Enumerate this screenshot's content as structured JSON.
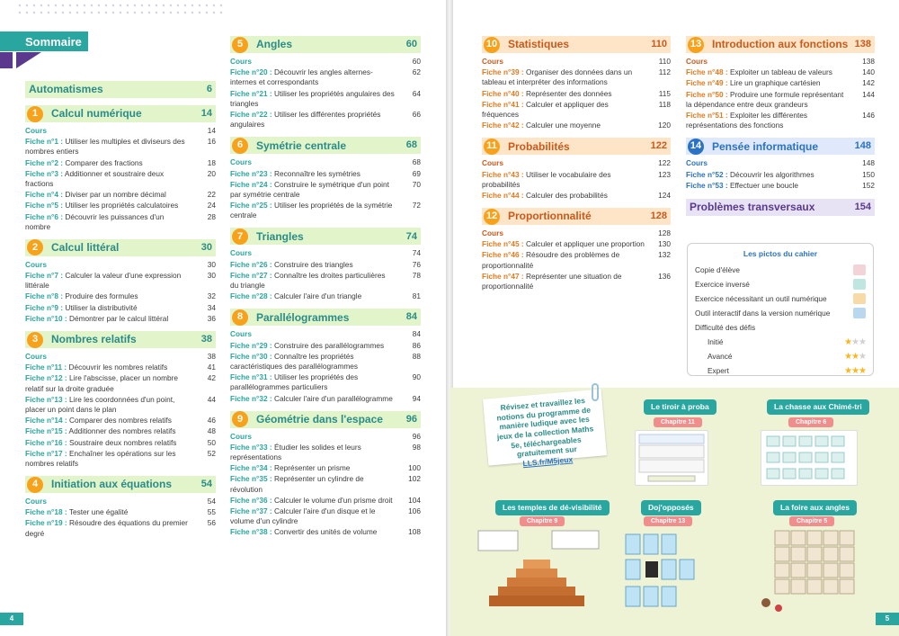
{
  "header": {
    "sommaire": "Sommaire"
  },
  "automatismes": {
    "label": "Automatismes",
    "page": "6"
  },
  "left_col": [
    {
      "num": "1",
      "title": "Calcul numérique",
      "page": "14",
      "cours": {
        "label": "Cours",
        "page": "14"
      },
      "fiches": [
        {
          "label": "Fiche n°1 :",
          "text": "Utiliser les multiples et diviseurs des nombres entiers",
          "page": "16"
        },
        {
          "label": "Fiche n°2 :",
          "text": "Comparer des fractions",
          "page": "18"
        },
        {
          "label": "Fiche n°3 :",
          "text": "Additionner et soustraire deux fractions",
          "page": "20"
        },
        {
          "label": "Fiche n°4 :",
          "text": "Diviser par un nombre décimal",
          "page": "22"
        },
        {
          "label": "Fiche n°5 :",
          "text": "Utiliser les propriétés calculatoires",
          "page": "24"
        },
        {
          "label": "Fiche n°6 :",
          "text": "Découvrir les puissances d'un nombre",
          "page": "28"
        }
      ]
    },
    {
      "num": "2",
      "title": "Calcul littéral",
      "page": "30",
      "cours": {
        "label": "Cours",
        "page": "30"
      },
      "fiches": [
        {
          "label": "Fiche n°7 :",
          "text": "Calculer la valeur d'une expression littérale",
          "page": "30"
        },
        {
          "label": "Fiche n°8 :",
          "text": "Produire des formules",
          "page": "32"
        },
        {
          "label": "Fiche n°9 :",
          "text": "Utiliser la distributivité",
          "page": "34"
        },
        {
          "label": "Fiche n°10 :",
          "text": "Démontrer par le calcul littéral",
          "page": "36"
        }
      ]
    },
    {
      "num": "3",
      "title": "Nombres relatifs",
      "page": "38",
      "cours": {
        "label": "Cours",
        "page": "38"
      },
      "fiches": [
        {
          "label": "Fiche n°11 :",
          "text": "Découvrir les nombres relatifs",
          "page": "41"
        },
        {
          "label": "Fiche n°12 :",
          "text": "Lire l'abscisse, placer un nombre relatif sur la droite graduée",
          "page": "42"
        },
        {
          "label": "Fiche n°13 :",
          "text": "Lire les coordonnées d'un point, placer un point dans le plan",
          "page": "44"
        },
        {
          "label": "Fiche n°14 :",
          "text": "Comparer des nombres relatifs",
          "page": "46"
        },
        {
          "label": "Fiche n°15 :",
          "text": "Additionner des nombres relatifs",
          "page": "48"
        },
        {
          "label": "Fiche n°16 :",
          "text": "Soustraire deux nombres relatifs",
          "page": "50"
        },
        {
          "label": "Fiche n°17 :",
          "text": "Enchaîner les opérations sur les nombres relatifs",
          "page": "52"
        }
      ]
    },
    {
      "num": "4",
      "title": "Initiation aux équations",
      "page": "54",
      "cours": {
        "label": "Cours",
        "page": "54"
      },
      "fiches": [
        {
          "label": "Fiche n°18 :",
          "text": "Tester une égalité",
          "page": "55"
        },
        {
          "label": "Fiche n°19 :",
          "text": "Résoudre des équations du premier degré",
          "page": "56"
        }
      ]
    }
  ],
  "mid_col": [
    {
      "num": "5",
      "title": "Angles",
      "page": "60",
      "cours": {
        "label": "Cours",
        "page": "60"
      },
      "fiches": [
        {
          "label": "Fiche n°20 :",
          "text": "Découvrir les angles alternes-internes et correspondants",
          "page": "62"
        },
        {
          "label": "Fiche n°21 :",
          "text": "Utiliser les propriétés angulaires des triangles",
          "page": "64"
        },
        {
          "label": "Fiche n°22 :",
          "text": "Utiliser les différentes propriétés angulaires",
          "page": "66"
        }
      ]
    },
    {
      "num": "6",
      "title": "Symétrie centrale",
      "page": "68",
      "cours": {
        "label": "Cours",
        "page": "68"
      },
      "fiches": [
        {
          "label": "Fiche n°23 :",
          "text": "Reconnaître les symétries",
          "page": "69"
        },
        {
          "label": "Fiche n°24 :",
          "text": "Construire le symétrique d'un point par symétrie centrale",
          "page": "70"
        },
        {
          "label": "Fiche n°25 :",
          "text": "Utiliser les propriétés de la symétrie centrale",
          "page": "72"
        }
      ]
    },
    {
      "num": "7",
      "title": "Triangles",
      "page": "74",
      "cours": {
        "label": "Cours",
        "page": "74"
      },
      "fiches": [
        {
          "label": "Fiche n°26 :",
          "text": "Construire des triangles",
          "page": "76"
        },
        {
          "label": "Fiche n°27 :",
          "text": "Connaître les droites particulières du triangle",
          "page": "78"
        },
        {
          "label": "Fiche n°28 :",
          "text": "Calculer l'aire d'un triangle",
          "page": "81"
        }
      ]
    },
    {
      "num": "8",
      "title": "Parallélogrammes",
      "page": "84",
      "cours": {
        "label": "Cours",
        "page": "84"
      },
      "fiches": [
        {
          "label": "Fiche n°29 :",
          "text": "Construire des parallélogrammes",
          "page": "86"
        },
        {
          "label": "Fiche n°30 :",
          "text": "Connaître les propriétés caractéristiques des parallélogrammes",
          "page": "88"
        },
        {
          "label": "Fiche n°31 :",
          "text": "Utiliser les propriétés des parallélogrammes particuliers",
          "page": "90"
        },
        {
          "label": "Fiche n°32 :",
          "text": "Calculer l'aire d'un parallélogramme",
          "page": "94"
        }
      ]
    },
    {
      "num": "9",
      "title": "Géométrie dans l'espace",
      "page": "96",
      "cours": {
        "label": "Cours",
        "page": "96"
      },
      "fiches": [
        {
          "label": "Fiche n°33 :",
          "text": "Étudier les solides et leurs représentations",
          "page": "98"
        },
        {
          "label": "Fiche n°34 :",
          "text": "Représenter un prisme",
          "page": "100"
        },
        {
          "label": "Fiche n°35 :",
          "text": "Représenter un cylindre de révolution",
          "page": "102"
        },
        {
          "label": "Fiche n°36 :",
          "text": "Calculer le volume d'un prisme droit",
          "page": "104"
        },
        {
          "label": "Fiche n°37 :",
          "text": "Calculer l'aire d'un disque et le volume d'un cylindre",
          "page": "106"
        },
        {
          "label": "Fiche n°38 :",
          "text": "Convertir des unités de volume",
          "page": "108"
        }
      ]
    }
  ],
  "right_col1": [
    {
      "num": "10",
      "title": "Statistiques",
      "page": "110",
      "cours": {
        "label": "Cours",
        "page": "110"
      },
      "fiches": [
        {
          "label": "Fiche n°39 :",
          "text": "Organiser des données dans un tableau et interpréter des informations",
          "page": "112"
        },
        {
          "label": "Fiche n°40 :",
          "text": "Représenter des données",
          "page": "115"
        },
        {
          "label": "Fiche n°41 :",
          "text": "Calculer et appliquer des fréquences",
          "page": "118"
        },
        {
          "label": "Fiche n°42 :",
          "text": "Calculer une moyenne",
          "page": "120"
        }
      ]
    },
    {
      "num": "11",
      "title": "Probabilités",
      "page": "122",
      "cours": {
        "label": "Cours",
        "page": "122"
      },
      "fiches": [
        {
          "label": "Fiche n°43 :",
          "text": "Utiliser le vocabulaire des probabilités",
          "page": "123"
        },
        {
          "label": "Fiche n°44 :",
          "text": "Calculer des probabilités",
          "page": "124"
        }
      ]
    },
    {
      "num": "12",
      "title": "Proportionnalité",
      "page": "128",
      "cours": {
        "label": "Cours",
        "page": "128"
      },
      "fiches": [
        {
          "label": "Fiche n°45 :",
          "text": "Calculer et appliquer une proportion",
          "page": "130"
        },
        {
          "label": "Fiche n°46 :",
          "text": "Résoudre des problèmes de proportionnalité",
          "page": "132"
        },
        {
          "label": "Fiche n°47 :",
          "text": "Représenter une situation de proportionnalité",
          "page": "136"
        }
      ]
    }
  ],
  "right_col2": [
    {
      "num": "13",
      "title": "Introduction aux fonctions",
      "page": "138",
      "cours": {
        "label": "Cours",
        "page": "138"
      },
      "fiches": [
        {
          "label": "Fiche n°48 :",
          "text": "Exploiter un tableau de valeurs",
          "page": "140"
        },
        {
          "label": "Fiche n°49 :",
          "text": "Lire un graphique cartésien",
          "page": "142"
        },
        {
          "label": "Fiche n°50 :",
          "text": "Produire une formule représentant la dépendance entre deux grandeurs",
          "page": "144"
        },
        {
          "label": "Fiche n°51 :",
          "text": "Exploiter les différentes représentations des fonctions",
          "page": "146"
        }
      ]
    },
    {
      "num": "14",
      "title": "Pensée informatique",
      "page": "148",
      "cours": {
        "label": "Cours",
        "page": "148"
      },
      "fiches": [
        {
          "label": "Fiche n°52 :",
          "text": "Découvrir les algorithmes",
          "page": "150"
        },
        {
          "label": "Fiche n°53 :",
          "text": "Effectuer une boucle",
          "page": "152"
        }
      ]
    }
  ],
  "problemes": {
    "label": "Problèmes transversaux",
    "page": "154"
  },
  "legend": {
    "title": "Les pictos du cahier",
    "items": [
      {
        "text": "Copie d'élève",
        "color": "#f4d3d8"
      },
      {
        "text": "Exercice inversé",
        "color": "#bfe6e1"
      },
      {
        "text": "Exercice nécessitant un outil numérique",
        "color": "#f8d9a8"
      },
      {
        "text": "Outil interactif dans la version numérique",
        "color": "#b9d7ef"
      }
    ],
    "difficulty": "Difficulté des défis",
    "levels": [
      {
        "text": "Initié",
        "on": 1
      },
      {
        "text": "Avancé",
        "on": 2
      },
      {
        "text": "Expert",
        "on": 3
      }
    ]
  },
  "promo": {
    "text": "Révisez et travaillez les notions du programme de manière ludique avec les jeux de la collection Maths 5e, téléchargeables gratuitement sur",
    "link": "LLS.fr/M5jeux"
  },
  "games": [
    {
      "title": "Le tiroir à proba",
      "chapter": "Chapitre 11"
    },
    {
      "title": "La chasse aux Chimé-tri",
      "chapter": "Chapitre 6"
    },
    {
      "title": "Les temples de dé-visibilité",
      "chapter": "Chapitre 9"
    },
    {
      "title": "Doj'opposés",
      "chapter": "Chapitre 13"
    },
    {
      "title": "La foire aux angles",
      "chapter": "Chapitre 5"
    }
  ],
  "page_numbers": {
    "left": "4",
    "right": "5"
  },
  "colors": {
    "teal": "#2aa6a0",
    "orange": "#f8a21c",
    "purple": "#5b3a8e",
    "light_green": "#e2f4c9"
  }
}
